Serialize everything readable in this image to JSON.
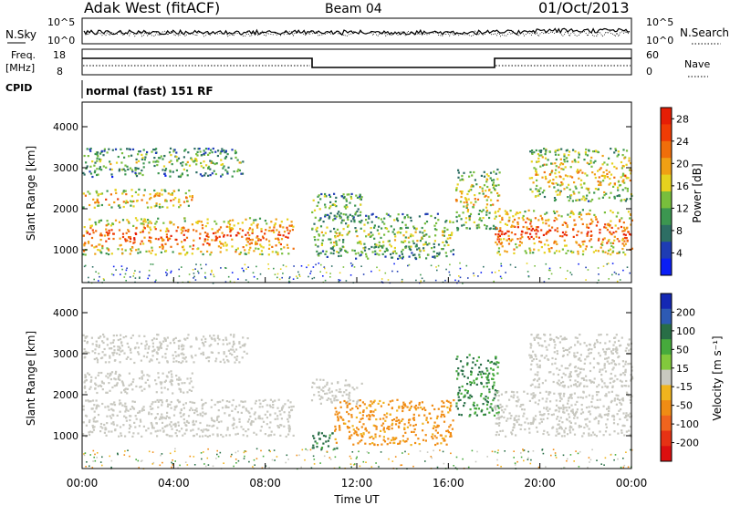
{
  "header": {
    "station": "Adak West (fitACF)",
    "beam": "Beam 04",
    "date": "01/Oct/2013"
  },
  "noise_panel": {
    "left_label": "N.Sky",
    "left_ticks": [
      "10^5",
      "10^0"
    ],
    "right_ticks": [
      "10^5",
      "10^0"
    ],
    "right_label": "N.Search"
  },
  "freq_panel": {
    "label_line1": "Freq.",
    "label_line2": "[MHz]",
    "left_ticks": [
      "18",
      "8"
    ],
    "right_ticks": [
      "60",
      "0"
    ],
    "right_label": "Nave",
    "cpid_label": "CPID",
    "cpid_value": "normal (fast) 151 RF"
  },
  "colors": {
    "power": [
      "#0a1ef5",
      "#1e3cb4",
      "#2d6e64",
      "#3c9650",
      "#78be3c",
      "#e6d21e",
      "#f0a014",
      "#f06e0a",
      "#f03c05",
      "#e61e05"
    ],
    "velocity": [
      "#1428b4",
      "#2d5ab4",
      "#286e46",
      "#46aa3c",
      "#82c83c",
      "#c8c8c0",
      "#f0b41e",
      "#f08c14",
      "#f0641e",
      "#e63214",
      "#dc0f0f"
    ]
  },
  "chart_data": [
    {
      "type": "heatmap",
      "name": "power",
      "title": "Beam 04",
      "xlabel": "Time UT",
      "ylabel": "Slant Range [km]",
      "xticks": [
        "00:00",
        "04:00",
        "08:00",
        "12:00",
        "16:00",
        "20:00",
        "00:00"
      ],
      "yticks": [
        "1000",
        "2000",
        "3000",
        "4000"
      ],
      "xlim_hours": [
        0,
        24
      ],
      "ylim_km": [
        200,
        4600
      ],
      "colorbar_label": "Power [dB]",
      "colorbar_ticks": [
        "4",
        "8",
        "12",
        "16",
        "20",
        "24",
        "28"
      ],
      "colorbar_range": [
        0,
        30
      ],
      "patches": [
        {
          "t0": 0.0,
          "t1": 9.2,
          "r0": 900,
          "r1": 1800,
          "level": 0.85
        },
        {
          "t0": 0.0,
          "t1": 4.8,
          "r0": 2050,
          "r1": 2500,
          "level": 0.75
        },
        {
          "t0": 0.0,
          "t1": 7.0,
          "r0": 2800,
          "r1": 3500,
          "level": 0.45
        },
        {
          "t0": 10.0,
          "t1": 12.2,
          "r0": 1800,
          "r1": 2400,
          "level": 0.5
        },
        {
          "t0": 10.0,
          "t1": 16.2,
          "r0": 800,
          "r1": 1900,
          "level": 0.5
        },
        {
          "t0": 16.3,
          "t1": 18.2,
          "r0": 1500,
          "r1": 3000,
          "level": 0.6
        },
        {
          "t0": 18.0,
          "t1": 24.0,
          "r0": 900,
          "r1": 2000,
          "level": 0.85
        },
        {
          "t0": 19.5,
          "t1": 24.0,
          "r0": 2200,
          "r1": 3500,
          "level": 0.65
        }
      ]
    },
    {
      "type": "heatmap",
      "name": "velocity",
      "xlabel": "Time UT",
      "ylabel": "Slant Range [km]",
      "xticks": [
        "00:00",
        "04:00",
        "08:00",
        "12:00",
        "16:00",
        "20:00",
        "00:00"
      ],
      "yticks": [
        "1000",
        "2000",
        "3000",
        "4000"
      ],
      "xlim_hours": [
        0,
        24
      ],
      "ylim_km": [
        200,
        4600
      ],
      "colorbar_label": "Velocity [m s⁻¹]",
      "colorbar_ticks": [
        "200",
        "100",
        "50",
        "15",
        "-15",
        "-50",
        "-100",
        "-200"
      ],
      "colorbar_range": [
        -250,
        250
      ],
      "patches": [
        {
          "t0": 0.0,
          "t1": 9.2,
          "r0": 1000,
          "r1": 1900,
          "level": 0.0
        },
        {
          "t0": 0.0,
          "t1": 4.8,
          "r0": 2050,
          "r1": 2600,
          "level": 0.0
        },
        {
          "t0": 0.0,
          "t1": 7.2,
          "r0": 2800,
          "r1": 3500,
          "level": 0.0
        },
        {
          "t0": 10.0,
          "t1": 12.2,
          "r0": 1800,
          "r1": 2400,
          "level": 0.0
        },
        {
          "t0": 10.0,
          "t1": 11.2,
          "r0": 700,
          "r1": 1100,
          "level": 50
        },
        {
          "t0": 11.0,
          "t1": 16.2,
          "r0": 800,
          "r1": 1900,
          "level": -60
        },
        {
          "t0": 16.3,
          "t1": 18.2,
          "r0": 1500,
          "r1": 3000,
          "level": 40
        },
        {
          "t0": 18.0,
          "t1": 24.0,
          "r0": 1000,
          "r1": 2100,
          "level": 0.0
        },
        {
          "t0": 19.5,
          "t1": 24.0,
          "r0": 2200,
          "r1": 3500,
          "level": 0.0
        }
      ]
    }
  ]
}
